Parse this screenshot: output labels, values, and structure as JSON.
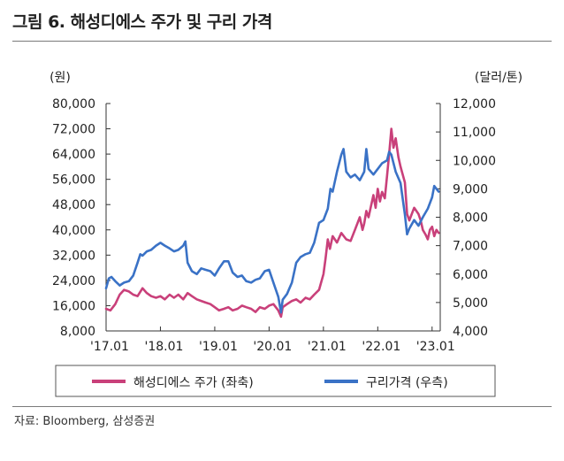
{
  "title": "그림 6. 해성디에스 주가 및 구리 가격",
  "source": "자료: Bloomberg, 삼성증권",
  "chart_data": {
    "type": "line",
    "left_axis": {
      "unit": "(원)",
      "min": 8000,
      "max": 80000,
      "ticks": [
        8000,
        16000,
        24000,
        32000,
        40000,
        48000,
        56000,
        64000,
        72000,
        80000
      ],
      "tick_labels": [
        "8,000",
        "16,000",
        "24,000",
        "32,000",
        "40,000",
        "48,000",
        "56,000",
        "64,000",
        "72,000",
        "80,000"
      ]
    },
    "right_axis": {
      "unit": "(달러/톤)",
      "min": 4000,
      "max": 12000,
      "ticks": [
        4000,
        5000,
        6000,
        7000,
        8000,
        9000,
        10000,
        11000,
        12000
      ],
      "tick_labels": [
        "4,000",
        "5,000",
        "6,000",
        "7,000",
        "8,000",
        "9,000",
        "10,000",
        "11,000",
        "12,000"
      ]
    },
    "x_axis": {
      "min": 2017.0,
      "max": 2023.15,
      "ticks": [
        2017,
        2018,
        2019,
        2020,
        2021,
        2022,
        2023
      ],
      "tick_labels": [
        "'17.01",
        "'18.01",
        "'19.01",
        "'20.01",
        "'21.01",
        "'22.01",
        "'23.01"
      ]
    },
    "series": [
      {
        "name": "해성디에스 주가 (좌축)",
        "axis": "left",
        "color": "#c9407a",
        "points": [
          [
            2017.0,
            15000
          ],
          [
            2017.08,
            14500
          ],
          [
            2017.17,
            16500
          ],
          [
            2017.25,
            19500
          ],
          [
            2017.33,
            21000
          ],
          [
            2017.42,
            20500
          ],
          [
            2017.5,
            19500
          ],
          [
            2017.58,
            19000
          ],
          [
            2017.67,
            21500
          ],
          [
            2017.75,
            20000
          ],
          [
            2017.83,
            19000
          ],
          [
            2017.92,
            18500
          ],
          [
            2018.0,
            19000
          ],
          [
            2018.08,
            18000
          ],
          [
            2018.17,
            19500
          ],
          [
            2018.25,
            18500
          ],
          [
            2018.33,
            19500
          ],
          [
            2018.42,
            18000
          ],
          [
            2018.5,
            20000
          ],
          [
            2018.58,
            19000
          ],
          [
            2018.67,
            18000
          ],
          [
            2018.75,
            17500
          ],
          [
            2018.83,
            17000
          ],
          [
            2018.92,
            16500
          ],
          [
            2019.0,
            15500
          ],
          [
            2019.08,
            14500
          ],
          [
            2019.17,
            15000
          ],
          [
            2019.25,
            15500
          ],
          [
            2019.33,
            14500
          ],
          [
            2019.42,
            15000
          ],
          [
            2019.5,
            16000
          ],
          [
            2019.58,
            15500
          ],
          [
            2019.67,
            15000
          ],
          [
            2019.75,
            14000
          ],
          [
            2019.83,
            15500
          ],
          [
            2019.92,
            15000
          ],
          [
            2020.0,
            16000
          ],
          [
            2020.08,
            16500
          ],
          [
            2020.17,
            14500
          ],
          [
            2020.22,
            12500
          ],
          [
            2020.25,
            15500
          ],
          [
            2020.33,
            16500
          ],
          [
            2020.42,
            17500
          ],
          [
            2020.5,
            18000
          ],
          [
            2020.58,
            17000
          ],
          [
            2020.67,
            18500
          ],
          [
            2020.75,
            18000
          ],
          [
            2020.83,
            19500
          ],
          [
            2020.92,
            21000
          ],
          [
            2021.0,
            26000
          ],
          [
            2021.04,
            31000
          ],
          [
            2021.08,
            37000
          ],
          [
            2021.12,
            34000
          ],
          [
            2021.17,
            38000
          ],
          [
            2021.25,
            36000
          ],
          [
            2021.33,
            39000
          ],
          [
            2021.42,
            37000
          ],
          [
            2021.5,
            36500
          ],
          [
            2021.58,
            40000
          ],
          [
            2021.67,
            44000
          ],
          [
            2021.72,
            40000
          ],
          [
            2021.75,
            42000
          ],
          [
            2021.79,
            46000
          ],
          [
            2021.83,
            44000
          ],
          [
            2021.92,
            51000
          ],
          [
            2021.96,
            47000
          ],
          [
            2022.0,
            53000
          ],
          [
            2022.04,
            49000
          ],
          [
            2022.08,
            52000
          ],
          [
            2022.13,
            50000
          ],
          [
            2022.17,
            57000
          ],
          [
            2022.21,
            64000
          ],
          [
            2022.25,
            72000
          ],
          [
            2022.29,
            66000
          ],
          [
            2022.33,
            69000
          ],
          [
            2022.38,
            63000
          ],
          [
            2022.42,
            60000
          ],
          [
            2022.5,
            55000
          ],
          [
            2022.54,
            45000
          ],
          [
            2022.58,
            43000
          ],
          [
            2022.67,
            47000
          ],
          [
            2022.75,
            45000
          ],
          [
            2022.79,
            43000
          ],
          [
            2022.83,
            40000
          ],
          [
            2022.88,
            38500
          ],
          [
            2022.92,
            37000
          ],
          [
            2022.96,
            40000
          ],
          [
            2023.0,
            41000
          ],
          [
            2023.04,
            38000
          ],
          [
            2023.08,
            40000
          ],
          [
            2023.12,
            39000
          ]
        ]
      },
      {
        "name": "구리가격 (우측)",
        "axis": "right",
        "color": "#3a72c6",
        "points": [
          [
            2017.0,
            5500
          ],
          [
            2017.05,
            5850
          ],
          [
            2017.1,
            5900
          ],
          [
            2017.17,
            5750
          ],
          [
            2017.25,
            5600
          ],
          [
            2017.33,
            5700
          ],
          [
            2017.42,
            5750
          ],
          [
            2017.5,
            5950
          ],
          [
            2017.58,
            6400
          ],
          [
            2017.63,
            6700
          ],
          [
            2017.67,
            6650
          ],
          [
            2017.75,
            6800
          ],
          [
            2017.83,
            6850
          ],
          [
            2017.92,
            7000
          ],
          [
            2018.0,
            7100
          ],
          [
            2018.08,
            7000
          ],
          [
            2018.17,
            6900
          ],
          [
            2018.25,
            6800
          ],
          [
            2018.33,
            6850
          ],
          [
            2018.42,
            7000
          ],
          [
            2018.46,
            7150
          ],
          [
            2018.5,
            6400
          ],
          [
            2018.58,
            6100
          ],
          [
            2018.67,
            6000
          ],
          [
            2018.75,
            6200
          ],
          [
            2018.83,
            6150
          ],
          [
            2018.92,
            6100
          ],
          [
            2019.0,
            5950
          ],
          [
            2019.08,
            6200
          ],
          [
            2019.17,
            6450
          ],
          [
            2019.25,
            6450
          ],
          [
            2019.33,
            6050
          ],
          [
            2019.42,
            5900
          ],
          [
            2019.5,
            5950
          ],
          [
            2019.58,
            5750
          ],
          [
            2019.67,
            5700
          ],
          [
            2019.75,
            5800
          ],
          [
            2019.83,
            5850
          ],
          [
            2019.92,
            6100
          ],
          [
            2020.0,
            6150
          ],
          [
            2020.08,
            5700
          ],
          [
            2020.17,
            5200
          ],
          [
            2020.22,
            4650
          ],
          [
            2020.25,
            5100
          ],
          [
            2020.33,
            5300
          ],
          [
            2020.42,
            5700
          ],
          [
            2020.5,
            6400
          ],
          [
            2020.58,
            6600
          ],
          [
            2020.67,
            6700
          ],
          [
            2020.75,
            6750
          ],
          [
            2020.83,
            7100
          ],
          [
            2020.92,
            7800
          ],
          [
            2021.0,
            7900
          ],
          [
            2021.08,
            8300
          ],
          [
            2021.13,
            9000
          ],
          [
            2021.17,
            8900
          ],
          [
            2021.25,
            9600
          ],
          [
            2021.33,
            10200
          ],
          [
            2021.37,
            10400
          ],
          [
            2021.42,
            9600
          ],
          [
            2021.5,
            9400
          ],
          [
            2021.58,
            9500
          ],
          [
            2021.67,
            9300
          ],
          [
            2021.75,
            9600
          ],
          [
            2021.79,
            10400
          ],
          [
            2021.83,
            9700
          ],
          [
            2021.92,
            9500
          ],
          [
            2022.0,
            9700
          ],
          [
            2022.08,
            9900
          ],
          [
            2022.17,
            10000
          ],
          [
            2022.21,
            10300
          ],
          [
            2022.25,
            10200
          ],
          [
            2022.33,
            9600
          ],
          [
            2022.42,
            9200
          ],
          [
            2022.5,
            8100
          ],
          [
            2022.54,
            7400
          ],
          [
            2022.58,
            7600
          ],
          [
            2022.67,
            7900
          ],
          [
            2022.75,
            7700
          ],
          [
            2022.83,
            8000
          ],
          [
            2022.92,
            8300
          ],
          [
            2023.0,
            8700
          ],
          [
            2023.04,
            9100
          ],
          [
            2023.08,
            9000
          ],
          [
            2023.12,
            8900
          ]
        ]
      }
    ],
    "legend": {
      "placement": "bottom",
      "items": [
        "해성디에스 주가 (좌축)",
        "구리가격 (우측)"
      ]
    },
    "grid": false
  }
}
